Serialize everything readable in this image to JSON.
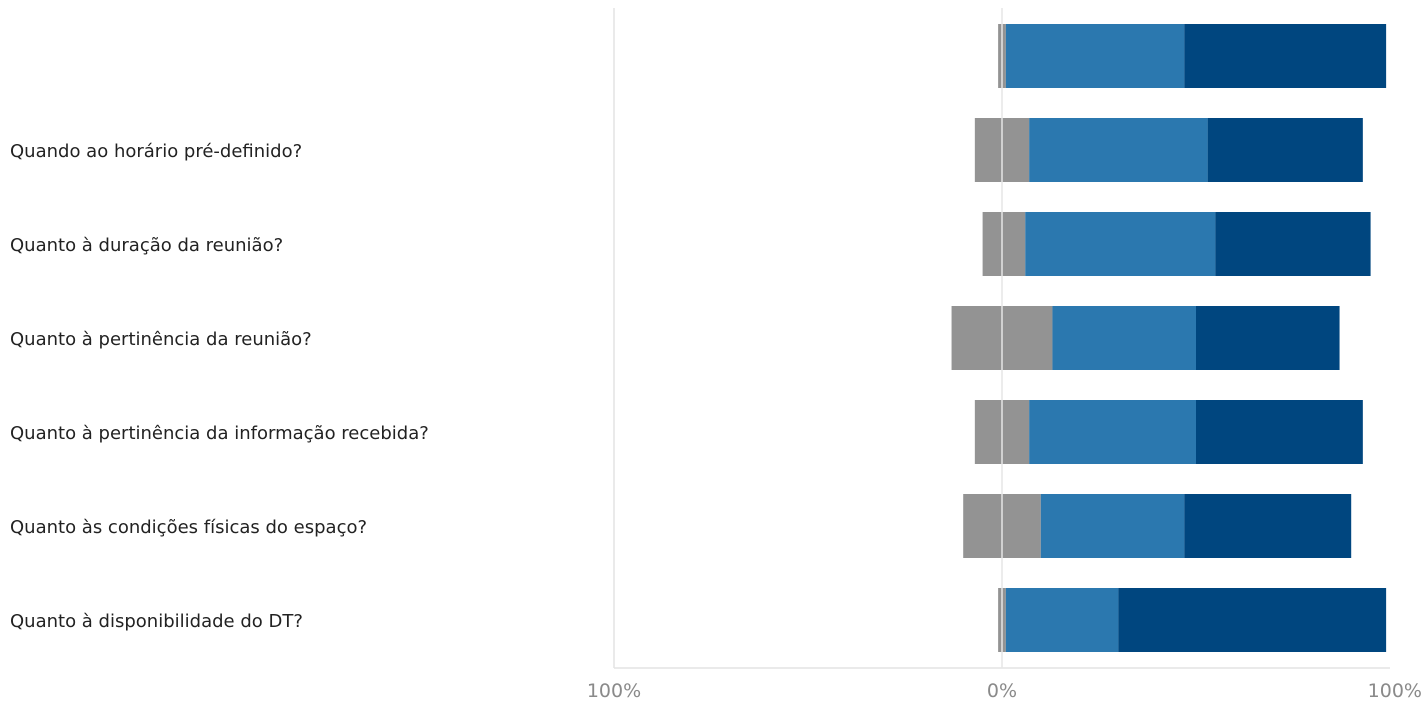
{
  "chart_data": {
    "type": "bar",
    "orientation": "horizontal",
    "stacked": "diverging",
    "categories": [
      "",
      "Quando ao horário pré-definido?",
      "Quanto à duração da reunião?",
      "Quanto à pertinência da reunião?",
      "Quanto à pertinência da informação recebida?",
      "Quanto às condições físicas do espaço?",
      "Quanto à disponibilidade do DT?"
    ],
    "series": [
      {
        "values": [
          1,
          7,
          5,
          13,
          7,
          10,
          1
        ],
        "color": "#939393",
        "side": "negative"
      },
      {
        "values": [
          1,
          7,
          6,
          13,
          7,
          10,
          1
        ],
        "color": "#939393",
        "side": "positive"
      },
      {
        "values": [
          46,
          46,
          49,
          37,
          43,
          37,
          29
        ],
        "color": "#2b78af",
        "side": "positive"
      },
      {
        "values": [
          52,
          40,
          40,
          37,
          43,
          43,
          69
        ],
        "color": "#00467f",
        "side": "positive"
      }
    ],
    "xlim": [
      -100,
      100
    ],
    "xticks": [
      "100%",
      "0%",
      "100%"
    ],
    "grid": false,
    "legend": "none"
  }
}
